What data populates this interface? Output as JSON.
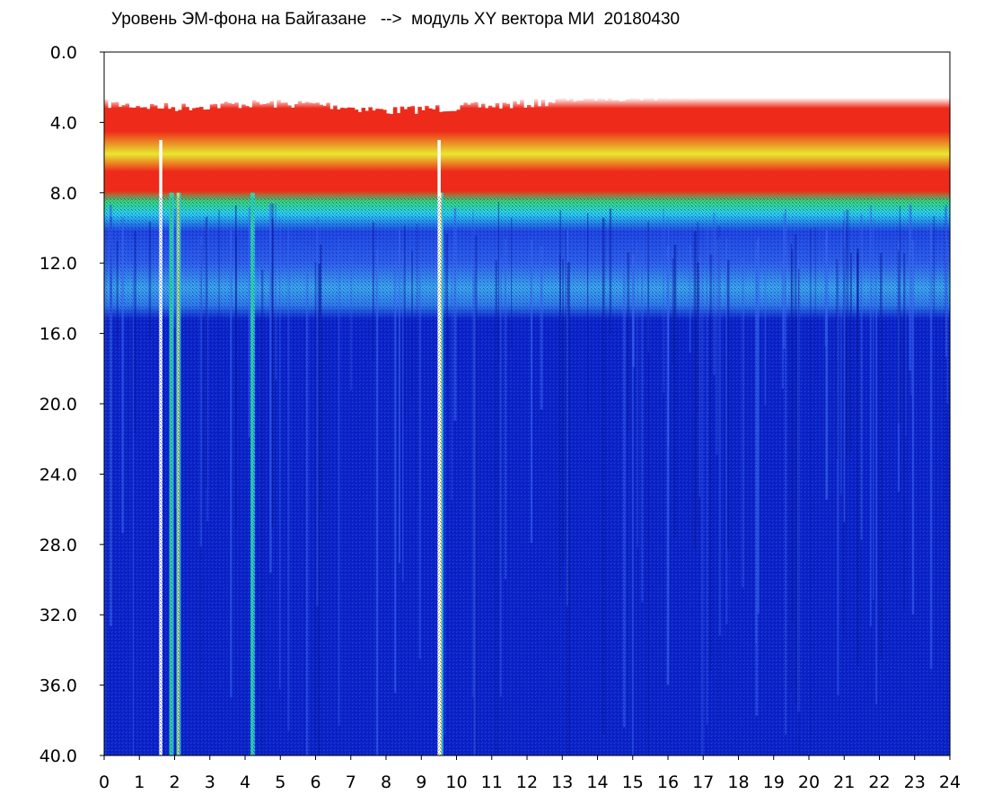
{
  "chart_data": {
    "type": "heatmap",
    "title": "Уровень ЭМ-фона на Байгазане   -->  модуль XY вектора МИ  20180430",
    "xlabel": "",
    "ylabel": "",
    "xlim": [
      0,
      24
    ],
    "ylim": [
      0,
      40
    ],
    "y_inverted": true,
    "grid": false,
    "x_ticks": [
      "0",
      "1",
      "2",
      "3",
      "4",
      "5",
      "6",
      "7",
      "8",
      "9",
      "10",
      "11",
      "12",
      "13",
      "14",
      "15",
      "16",
      "17",
      "18",
      "19",
      "20",
      "21",
      "22",
      "23",
      "24"
    ],
    "y_ticks": [
      "0.0",
      "4.0",
      "8.0",
      "12.0",
      "16.0",
      "20.0",
      "24.0",
      "28.0",
      "32.0",
      "36.0",
      "40.0"
    ],
    "colors": {
      "deep_blue": "#0a22c6",
      "blue": "#1e46e0",
      "cyan": "#2ad7e8",
      "green": "#34e06a",
      "yellow": "#e8e830",
      "red": "#ee2a1a",
      "gap": "#ffffff"
    },
    "bands": [
      {
        "level": "low",
        "y_from": 15.0,
        "y_to": 40.0,
        "color": "deep_blue"
      },
      {
        "level": "medium",
        "y_from": 8.5,
        "y_to": 15.0,
        "color": "blue_cyan"
      },
      {
        "level": "high",
        "y_from": 3.0,
        "y_to": 8.5,
        "color": "red_yellow_green"
      }
    ],
    "upper_edge": {
      "x": [
        0,
        2,
        4,
        6,
        8,
        10,
        12,
        14,
        16,
        18,
        20,
        21,
        22,
        23,
        24
      ],
      "y": [
        3.0,
        3.2,
        3.0,
        3.0,
        3.4,
        3.2,
        3.0,
        2.6,
        2.6,
        2.2,
        1.6,
        1.4,
        1.2,
        1.6,
        2.4
      ]
    },
    "gaps_x": [
      1.6,
      9.5
    ],
    "spikes_x": [
      1.9,
      2.1,
      4.2,
      9.55
    ]
  }
}
